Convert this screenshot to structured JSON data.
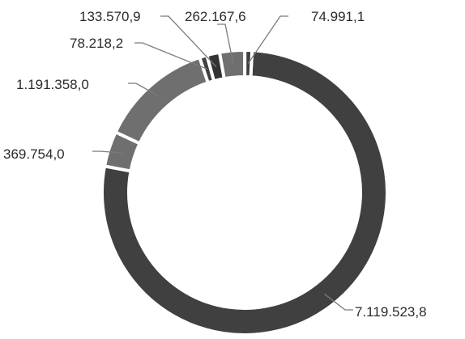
{
  "chart_data": {
    "type": "pie",
    "subtype": "donut",
    "title": "",
    "slices": [
      {
        "label": "7.119.523,8",
        "value": 7119523.8,
        "color": "#404040"
      },
      {
        "label": "369.754,0",
        "value": 369754.0,
        "color": "#6f6f6f"
      },
      {
        "label": "1.191.358,0",
        "value": 1191358.0,
        "color": "#6f6f6f"
      },
      {
        "label": "78.218,2",
        "value": 78218.2,
        "color": "#404040"
      },
      {
        "label": "133.570,9",
        "value": 133570.9,
        "color": "#333333"
      },
      {
        "label": "262.167,6",
        "value": 262167.6,
        "color": "#6f6f6f"
      },
      {
        "label": "74.991,1",
        "value": 74991.1,
        "color": "#404040"
      }
    ]
  }
}
